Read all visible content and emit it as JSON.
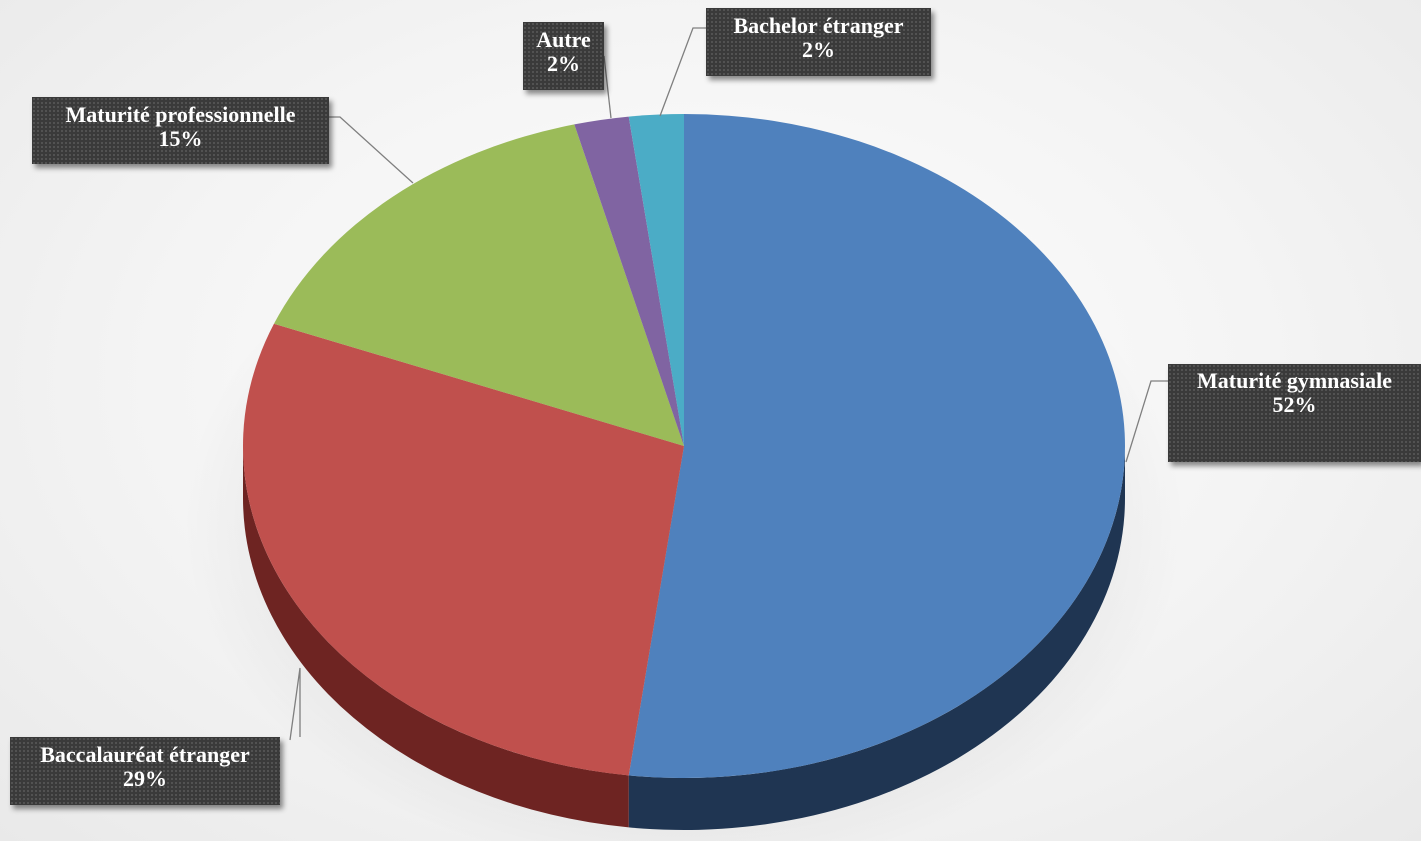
{
  "chart_data": {
    "type": "pie",
    "style": "3d",
    "title": "",
    "legend": "none",
    "slices": [
      {
        "name": "Maturité gymnasiale",
        "value": 52,
        "percent_label": "52%",
        "color": "#4f81bd",
        "side_color": "#1f3552"
      },
      {
        "name": "Baccalauréat étranger",
        "value": 29,
        "percent_label": "29%",
        "color": "#c0504d",
        "side_color": "#6e2422"
      },
      {
        "name": "Maturité professionnelle",
        "value": 15,
        "percent_label": "15%",
        "color": "#9bbb59",
        "side_color": "#5a6e31"
      },
      {
        "name": "Autre",
        "value": 2,
        "percent_label": "2%",
        "color": "#8064a2",
        "side_color": "#4a3a5f"
      },
      {
        "name": "Bachelor étranger",
        "value": 2,
        "percent_label": "2%",
        "color": "#4bacc6",
        "side_color": "#276575"
      }
    ]
  }
}
